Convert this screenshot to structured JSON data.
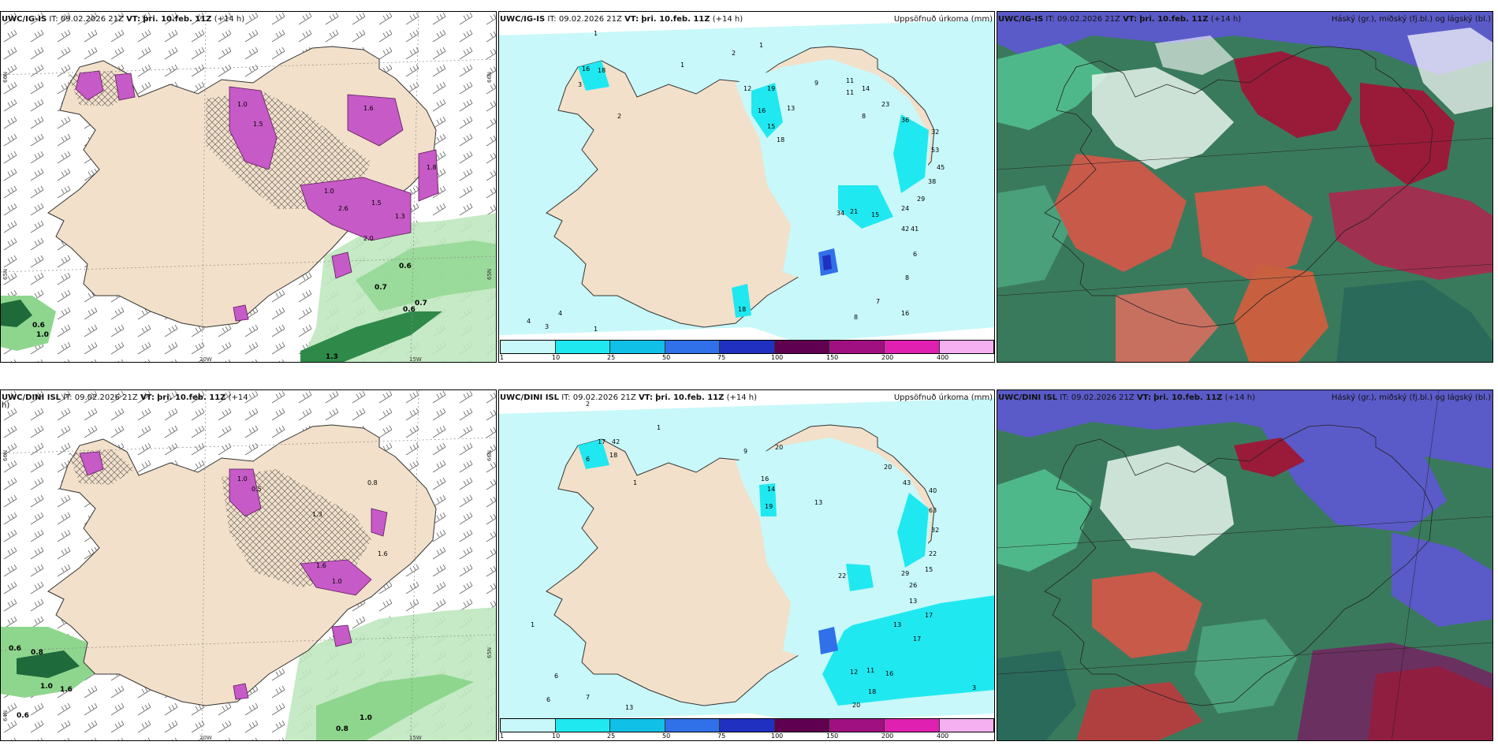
{
  "panels": [
    {
      "id": "p1",
      "model": "UWC/IG-IS",
      "it": "IT: 09.02.2026 21Z",
      "vt_prefix": "VT:",
      "vt": "þri. 10.feb. 11Z",
      "lead": "(+14 h)",
      "right": "",
      "kind": "wind",
      "values": [
        "1.0",
        "1.5",
        "1.6",
        "1.0",
        "2.6",
        "1.5",
        "1.3",
        "1.8",
        "2.0",
        "0.6",
        "0.7",
        "0.6",
        "0.6",
        "1.0",
        "0.7",
        "1.3"
      ]
    },
    {
      "id": "p2",
      "model": "UWC/IG-IS",
      "it": "IT: 09.02.2026 21Z",
      "vt_prefix": "VT:",
      "vt": "þri. 10.feb. 11Z",
      "lead": "(+14 h)",
      "right": "Uppsöfnuð úrkoma (mm)",
      "kind": "precip",
      "values": [
        "1",
        "1",
        "2",
        "1",
        "16",
        "18",
        "3",
        "2",
        "12",
        "19",
        "13",
        "9",
        "16",
        "15",
        "18",
        "23",
        "36",
        "32",
        "53",
        "38",
        "45",
        "29",
        "34",
        "21",
        "15",
        "42",
        "41",
        "24",
        "6",
        "8",
        "7",
        "16",
        "8",
        "18",
        "4",
        "3",
        "4",
        "1",
        "11",
        "14",
        "11",
        "8"
      ]
    },
    {
      "id": "p3",
      "model": "UWC/IG-IS",
      "it": "IT: 09.02.2026 21Z",
      "vt_prefix": "VT:",
      "vt": "þri. 10.feb. 11Z",
      "lead": "(+14 h)",
      "right": "Háský (gr.), miðský (fj.bl.) og lágský (bl.)",
      "kind": "cloud",
      "values": []
    },
    {
      "id": "p4",
      "model": "UWC/DINI ISL",
      "it": "IT: 09.02.2026 21Z",
      "vt_prefix": "VT:",
      "vt": "þri. 10.feb. 11Z",
      "lead": "(+14",
      "lead2": "h)",
      "right": "",
      "kind": "wind",
      "values": [
        "1.0",
        "0.5",
        "1.3",
        "0.8",
        "1.6",
        "1.6",
        "1.0",
        "0.6",
        "0.8",
        "1.6",
        "1.0",
        "0.6",
        "0.8",
        "1.0"
      ]
    },
    {
      "id": "p5",
      "model": "UWC/DINI ISL",
      "it": "IT: 09.02.2026 21Z",
      "vt_prefix": "VT:",
      "vt": "þri. 10.feb. 11Z",
      "lead": "(+14 h)",
      "right": "Uppsöfnuð úrkoma (mm)",
      "kind": "precip",
      "values": [
        "2",
        "1",
        "17",
        "42",
        "18",
        "6",
        "1",
        "9",
        "20",
        "16",
        "14",
        "19",
        "13",
        "40",
        "20",
        "43",
        "63",
        "32",
        "22",
        "29",
        "26",
        "15",
        "22",
        "13",
        "17",
        "13",
        "17",
        "12",
        "11",
        "16",
        "18",
        "20",
        "3",
        "6",
        "6",
        "7",
        "1",
        "13"
      ]
    },
    {
      "id": "p6",
      "model": "UWC/DINI ISL",
      "it": "IT: 09.02.2026 21Z",
      "vt_prefix": "VT:",
      "vt": "þri. 10.feb. 11Z",
      "lead": "(+14 h)",
      "right": "Háský (gr.), miðský (fj.bl.) og lágský (bl.)",
      "kind": "cloud",
      "values": []
    }
  ],
  "axis_labels": {
    "lon_20w": "20W",
    "lon_15w": "15W",
    "lat_66n": "66N",
    "lat_65n": "65N",
    "lat_64n": "64N"
  },
  "colorbar": {
    "ticks": [
      "1",
      "10",
      "25",
      "50",
      "75",
      "100",
      "150",
      "200",
      "400"
    ],
    "colors": [
      "#c8f8fa",
      "#20e8f0",
      "#10c0e6",
      "#3070e8",
      "#2030c0",
      "#600050",
      "#a01080",
      "#e020b0",
      "#f4b0f0"
    ]
  },
  "colors": {
    "land": "#f2e0ca",
    "coast": "#333333",
    "wind_green": "#8ed68e",
    "wind_dark": "#1f6a3a",
    "precip_magenta": "#c65ac6",
    "cloud_blue": "#5a5ac8",
    "cloud_red": "#b03030",
    "cloud_green": "#3cb878"
  }
}
